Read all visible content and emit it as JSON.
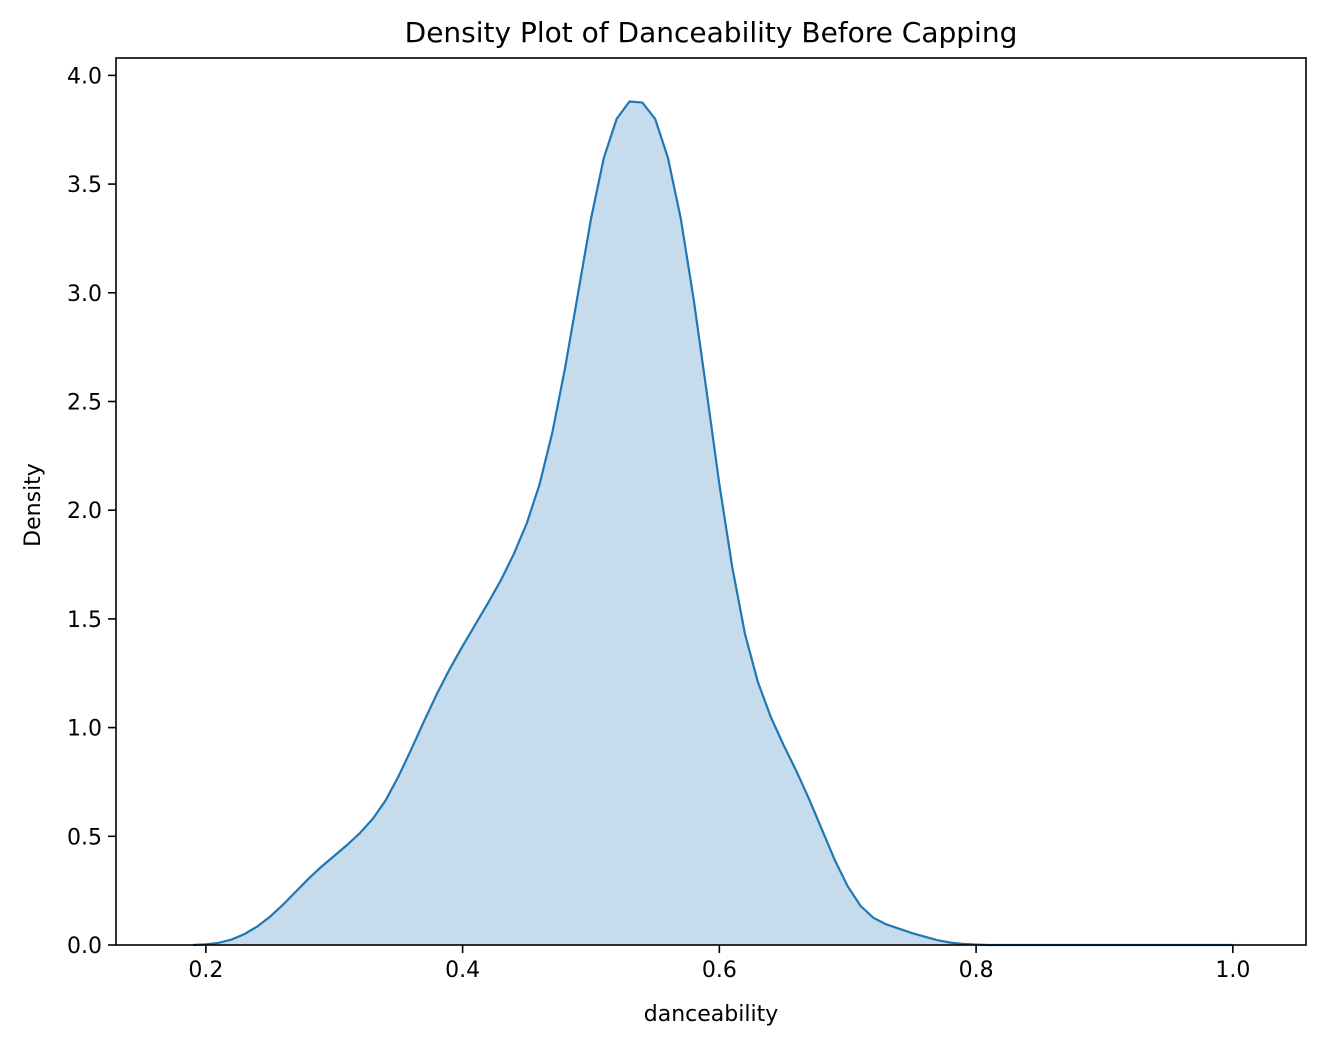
{
  "chart_data": {
    "type": "area",
    "title": "Density Plot of Danceability Before Capping",
    "xlabel": "danceability",
    "ylabel": "Density",
    "xlim": [
      0.13,
      1.057
    ],
    "ylim": [
      0,
      4.08
    ],
    "xticks": [
      0.2,
      0.4,
      0.6,
      0.8,
      1.0
    ],
    "xtick_labels": [
      "0.2",
      "0.4",
      "0.6",
      "0.8",
      "1.0"
    ],
    "yticks": [
      0.0,
      0.5,
      1.0,
      1.5,
      2.0,
      2.5,
      3.0,
      3.5,
      4.0
    ],
    "ytick_labels": [
      "0.0",
      "0.5",
      "1.0",
      "1.5",
      "2.0",
      "2.5",
      "3.0",
      "3.5",
      "4.0"
    ],
    "grid": false,
    "legend": false,
    "series": [
      {
        "color": "#1f77b4",
        "fill_color": "#c6dbec",
        "x": [
          0.19,
          0.2,
          0.21,
          0.22,
          0.23,
          0.24,
          0.25,
          0.26,
          0.27,
          0.28,
          0.29,
          0.3,
          0.31,
          0.32,
          0.33,
          0.34,
          0.35,
          0.36,
          0.37,
          0.38,
          0.39,
          0.4,
          0.41,
          0.42,
          0.43,
          0.44,
          0.45,
          0.46,
          0.47,
          0.48,
          0.49,
          0.5,
          0.51,
          0.52,
          0.53,
          0.54,
          0.55,
          0.56,
          0.57,
          0.58,
          0.59,
          0.6,
          0.61,
          0.62,
          0.63,
          0.64,
          0.65,
          0.66,
          0.67,
          0.68,
          0.69,
          0.7,
          0.71,
          0.72,
          0.73,
          0.74,
          0.75,
          0.76,
          0.77,
          0.78,
          0.79,
          0.8,
          0.81,
          0.82,
          0.83,
          0.84,
          0.85,
          0.86,
          0.87,
          0.88,
          0.89,
          0.9,
          0.91,
          0.92,
          0.93,
          0.94,
          0.95,
          0.96,
          0.97,
          0.98,
          0.99,
          1.0
        ],
        "y": [
          0.0,
          0.003,
          0.01,
          0.025,
          0.05,
          0.085,
          0.13,
          0.185,
          0.245,
          0.305,
          0.36,
          0.41,
          0.46,
          0.515,
          0.58,
          0.665,
          0.775,
          0.9,
          1.03,
          1.155,
          1.27,
          1.375,
          1.475,
          1.575,
          1.68,
          1.8,
          1.94,
          2.12,
          2.36,
          2.66,
          3.0,
          3.34,
          3.62,
          3.8,
          3.88,
          3.875,
          3.8,
          3.62,
          3.34,
          2.97,
          2.55,
          2.12,
          1.74,
          1.43,
          1.21,
          1.05,
          0.92,
          0.8,
          0.67,
          0.53,
          0.39,
          0.27,
          0.18,
          0.125,
          0.095,
          0.075,
          0.055,
          0.038,
          0.022,
          0.011,
          0.005,
          0.002,
          0.0,
          0.0,
          0.0,
          0.0,
          0.0,
          0.0,
          0.0,
          0.0,
          0.0,
          0.0,
          0.0,
          0.0,
          0.0,
          0.0,
          0.0,
          0.0,
          0.0,
          0.0,
          0.0,
          0.0
        ]
      }
    ]
  }
}
